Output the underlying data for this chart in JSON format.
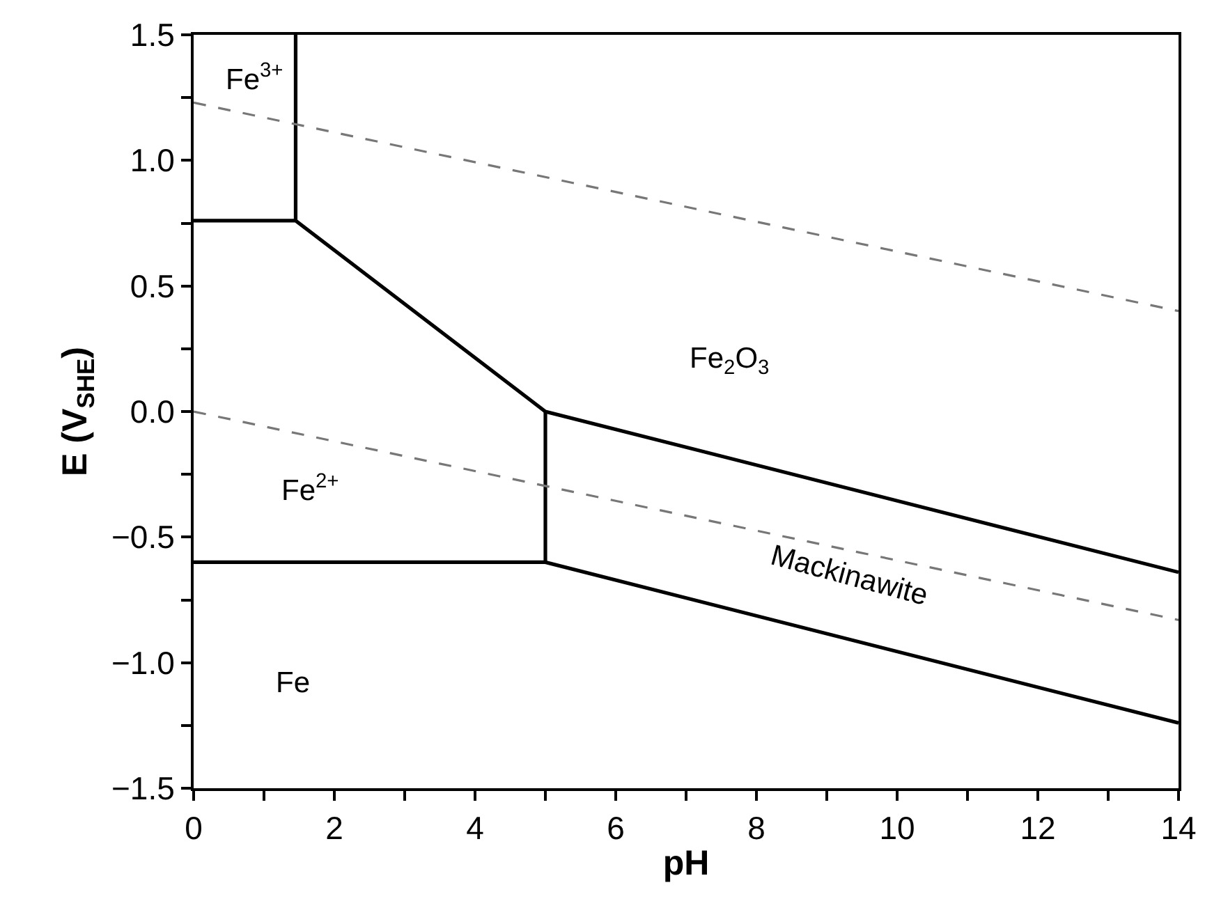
{
  "chart_data": {
    "type": "line",
    "xlabel": "pH",
    "ylabel": "E (V$_{SHE}$)",
    "xlim": [
      0,
      14
    ],
    "ylim": [
      -1.5,
      1.5
    ],
    "xticks": [
      0,
      {
        "value": 1,
        "label": null
      },
      2,
      {
        "value": 3,
        "label": null
      },
      4,
      {
        "value": 5,
        "label": null
      },
      6,
      {
        "value": 7,
        "label": null
      },
      8,
      {
        "value": 9,
        "label": null
      },
      10,
      {
        "value": 11,
        "label": null
      },
      12,
      {
        "value": 13,
        "label": null
      },
      14
    ],
    "yticks": [
      {
        "value": -1.5,
        "label": "−1.5"
      },
      {
        "value": -1.25,
        "label": null
      },
      {
        "value": -1.0,
        "label": "−1.0"
      },
      {
        "value": -0.75,
        "label": null
      },
      {
        "value": -0.5,
        "label": "−0.5"
      },
      {
        "value": -0.25,
        "label": null
      },
      {
        "value": 0,
        "label": "0.0"
      },
      {
        "value": 0.25,
        "label": null
      },
      {
        "value": 0.5,
        "label": "0.5"
      },
      {
        "value": 0.75,
        "label": null
      },
      {
        "value": 1.0,
        "label": "1.0"
      },
      {
        "value": 1.25,
        "label": null
      },
      {
        "value": 1.5,
        "label": "1.5"
      }
    ],
    "grid": false,
    "marker": "none",
    "series": [
      {
        "color": "#000000",
        "line_style": "solid",
        "x": [
          0,
          1.45,
          5.0,
          14
        ],
        "values": [
          0.76,
          0.76,
          0.0,
          -0.64
        ]
      },
      {
        "color": "#000000",
        "line_style": "solid",
        "x": [
          1.45,
          1.45
        ],
        "values": [
          0.76,
          1.5
        ]
      },
      {
        "color": "#000000",
        "line_style": "solid",
        "x": [
          5.0,
          5.0
        ],
        "values": [
          0.0,
          -0.6
        ]
      },
      {
        "color": "#000000",
        "line_style": "solid",
        "x": [
          0,
          5.0,
          14
        ],
        "values": [
          -0.6,
          -0.6,
          -1.24
        ]
      },
      {
        "color": "#777777",
        "line_style": "dashed",
        "x": [
          0,
          14
        ],
        "values": [
          1.23,
          0.4
        ]
      },
      {
        "color": "#777777",
        "line_style": "dashed",
        "x": [
          0,
          14
        ],
        "values": [
          0.0,
          -0.83
        ]
      }
    ],
    "annotations": [
      "Fe$^{3+}$",
      "Fe$^{2+}$",
      "Fe$_{2}$O$_{3}$",
      "Mackinawite",
      "Fe"
    ]
  }
}
